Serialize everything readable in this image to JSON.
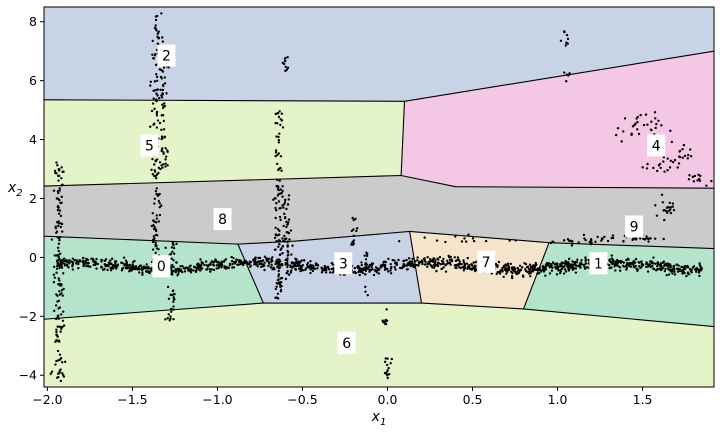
{
  "chart_data": {
    "type": "scatter",
    "title": "",
    "xlabel": "x",
    "xlabel_sub": "1",
    "ylabel": "x",
    "ylabel_sub": "2",
    "xlim": [
      -2.02,
      1.92
    ],
    "ylim": [
      -4.4,
      8.5
    ],
    "x_ticks": [
      -2.0,
      -1.5,
      -1.0,
      -0.5,
      0.0,
      0.5,
      1.0,
      1.5
    ],
    "x_tick_labels": [
      "−2.0",
      "−1.5",
      "−1.0",
      "−0.5",
      "0.0",
      "0.5",
      "1.0",
      "1.5"
    ],
    "y_ticks": [
      -4,
      -2,
      0,
      2,
      4,
      6,
      8
    ],
    "y_tick_labels": [
      "−4",
      "−2",
      "0",
      "2",
      "4",
      "6",
      "8"
    ],
    "grid": false,
    "regions": [
      {
        "id": "2",
        "color": "#c8d4e6",
        "polygon": [
          [
            -2.02,
            8.5
          ],
          [
            1.92,
            8.5
          ],
          [
            1.92,
            7.0
          ],
          [
            0.1,
            5.3
          ],
          [
            -2.02,
            5.35
          ]
        ]
      },
      {
        "id": "4",
        "color": "#f4c8e4",
        "polygon": [
          [
            0.1,
            5.3
          ],
          [
            1.92,
            7.0
          ],
          [
            1.92,
            2.35
          ],
          [
            0.4,
            2.4
          ],
          [
            0.08,
            2.78
          ]
        ]
      },
      {
        "id": "5",
        "color": "#e4f4c8",
        "polygon": [
          [
            -2.02,
            5.35
          ],
          [
            0.1,
            5.3
          ],
          [
            0.08,
            2.78
          ],
          [
            -2.02,
            2.42
          ]
        ]
      },
      {
        "id": "8",
        "color": "#cbcbcb",
        "polygon": [
          [
            -2.02,
            2.42
          ],
          [
            0.08,
            2.78
          ],
          [
            0.4,
            2.4
          ],
          [
            1.92,
            2.35
          ],
          [
            1.92,
            0.3
          ],
          [
            0.95,
            0.5
          ],
          [
            0.13,
            0.88
          ],
          [
            -0.55,
            0.55
          ],
          [
            -0.88,
            0.45
          ],
          [
            -2.02,
            0.72
          ]
        ]
      },
      {
        "id": "0",
        "color": "#b4e4cc",
        "polygon": [
          [
            -2.02,
            0.72
          ],
          [
            -0.88,
            0.45
          ],
          [
            -0.73,
            -1.55
          ],
          [
            -2.02,
            -2.1
          ]
        ]
      },
      {
        "id": "3",
        "color": "#c8d4e6",
        "polygon": [
          [
            -0.88,
            0.45
          ],
          [
            -0.55,
            0.55
          ],
          [
            0.13,
            0.88
          ],
          [
            0.2,
            -1.55
          ],
          [
            -0.73,
            -1.55
          ]
        ]
      },
      {
        "id": "7",
        "color": "#f4e4cc",
        "polygon": [
          [
            0.13,
            0.88
          ],
          [
            0.95,
            0.5
          ],
          [
            0.8,
            -1.75
          ],
          [
            0.2,
            -1.55
          ]
        ]
      },
      {
        "id": "1",
        "color": "#b4e4cc",
        "polygon": [
          [
            0.95,
            0.5
          ],
          [
            1.92,
            0.3
          ],
          [
            1.92,
            -2.35
          ],
          [
            0.8,
            -1.75
          ]
        ]
      },
      {
        "id": "6",
        "color": "#e4f4c8",
        "polygon": [
          [
            -2.02,
            -2.1
          ],
          [
            -0.73,
            -1.55
          ],
          [
            0.2,
            -1.55
          ],
          [
            0.8,
            -1.75
          ],
          [
            1.92,
            -2.35
          ],
          [
            1.92,
            -4.4
          ],
          [
            -2.02,
            -4.4
          ]
        ]
      }
    ],
    "boundaries": [
      [
        [
          -2.02,
          5.35
        ],
        [
          0.1,
          5.3
        ],
        [
          1.92,
          7.0
        ]
      ],
      [
        [
          0.1,
          5.3
        ],
        [
          0.08,
          2.78
        ]
      ],
      [
        [
          -2.02,
          2.42
        ],
        [
          0.08,
          2.78
        ],
        [
          0.4,
          2.4
        ],
        [
          1.92,
          2.35
        ]
      ],
      [
        [
          -2.02,
          0.72
        ],
        [
          -0.88,
          0.45
        ],
        [
          -0.55,
          0.55
        ],
        [
          0.13,
          0.88
        ],
        [
          0.95,
          0.5
        ],
        [
          1.92,
          0.3
        ]
      ],
      [
        [
          -0.88,
          0.45
        ],
        [
          -0.73,
          -1.55
        ]
      ],
      [
        [
          0.13,
          0.88
        ],
        [
          0.2,
          -1.55
        ]
      ],
      [
        [
          0.95,
          0.5
        ],
        [
          0.8,
          -1.75
        ]
      ],
      [
        [
          -2.02,
          -2.1
        ],
        [
          -0.73,
          -1.55
        ],
        [
          0.2,
          -1.55
        ],
        [
          0.8,
          -1.75
        ],
        [
          1.92,
          -2.35
        ]
      ]
    ],
    "cluster_labels": [
      {
        "text": "2",
        "x": -1.3,
        "y": 6.85
      },
      {
        "text": "5",
        "x": -1.4,
        "y": 3.8
      },
      {
        "text": "4",
        "x": 1.58,
        "y": 3.8
      },
      {
        "text": "8",
        "x": -0.97,
        "y": 1.3
      },
      {
        "text": "9",
        "x": 1.45,
        "y": 1.05
      },
      {
        "text": "0",
        "x": -1.33,
        "y": -0.3
      },
      {
        "text": "3",
        "x": -0.26,
        "y": -0.2
      },
      {
        "text": "7",
        "x": 0.58,
        "y": -0.15
      },
      {
        "text": "1",
        "x": 1.24,
        "y": -0.2
      },
      {
        "text": "6",
        "x": -0.24,
        "y": -2.9
      }
    ],
    "point_groups": [
      {
        "type": "curve",
        "x0": -1.95,
        "x1": 1.85,
        "y": -0.3,
        "noise": 0.1,
        "n": 1400,
        "amp": 0.12,
        "freq": 6.0
      },
      {
        "type": "vline",
        "x": -1.93,
        "y0": -4.2,
        "y1": 3.3,
        "noise": 0.015,
        "n": 140
      },
      {
        "type": "vline",
        "x": -1.36,
        "y0": -0.5,
        "y1": 8.3,
        "noise": 0.015,
        "n": 150
      },
      {
        "type": "vline",
        "x": -1.32,
        "y0": 3.0,
        "y1": 7.2,
        "noise": 0.015,
        "n": 60
      },
      {
        "type": "vline",
        "x": -1.27,
        "y0": -2.2,
        "y1": 0.5,
        "noise": 0.015,
        "n": 45
      },
      {
        "type": "vline",
        "x": -0.64,
        "y0": -1.4,
        "y1": 5.0,
        "noise": 0.015,
        "n": 110
      },
      {
        "type": "vline",
        "x": -0.59,
        "y0": -0.8,
        "y1": 2.2,
        "noise": 0.015,
        "n": 50
      },
      {
        "type": "vline",
        "x": -0.6,
        "y0": 6.3,
        "y1": 6.8,
        "noise": 0.01,
        "n": 10
      },
      {
        "type": "vline",
        "x": -0.2,
        "y0": 0.4,
        "y1": 1.5,
        "noise": 0.01,
        "n": 14
      },
      {
        "type": "vline",
        "x": -0.13,
        "y0": -1.3,
        "y1": 0.2,
        "noise": 0.01,
        "n": 12
      },
      {
        "type": "vline",
        "x": -0.02,
        "y0": -2.3,
        "y1": -1.7,
        "noise": 0.01,
        "n": 10
      },
      {
        "type": "vline",
        "x": 0.0,
        "y0": -4.1,
        "y1": -3.4,
        "noise": 0.01,
        "n": 14
      },
      {
        "type": "vline",
        "x": 1.05,
        "y0": 7.1,
        "y1": 7.7,
        "noise": 0.01,
        "n": 8
      },
      {
        "type": "vline",
        "x": 1.05,
        "y0": 5.9,
        "y1": 6.3,
        "noise": 0.01,
        "n": 5
      },
      {
        "type": "cluster",
        "cx": 1.48,
        "cy": 4.4,
        "sx": 0.07,
        "sy": 0.25,
        "n": 30
      },
      {
        "type": "cluster",
        "cx": 1.62,
        "cy": 3.1,
        "sx": 0.05,
        "sy": 0.15,
        "n": 20
      },
      {
        "type": "cluster",
        "cx": 1.75,
        "cy": 3.6,
        "sx": 0.03,
        "sy": 0.2,
        "n": 12
      },
      {
        "type": "cluster",
        "cx": 1.8,
        "cy": 2.6,
        "sx": 0.05,
        "sy": 0.12,
        "n": 12
      },
      {
        "type": "cluster",
        "cx": 1.65,
        "cy": 1.7,
        "sx": 0.04,
        "sy": 0.2,
        "n": 20
      },
      {
        "type": "cluster",
        "cx": 1.4,
        "cy": 0.65,
        "sx": 0.1,
        "sy": 0.06,
        "n": 35
      },
      {
        "type": "cluster",
        "cx": 1.12,
        "cy": 0.55,
        "sx": 0.1,
        "sy": 0.06,
        "n": 18
      },
      {
        "type": "cluster",
        "cx": 0.4,
        "cy": 0.6,
        "sx": 0.18,
        "sy": 0.08,
        "n": 14
      }
    ]
  }
}
